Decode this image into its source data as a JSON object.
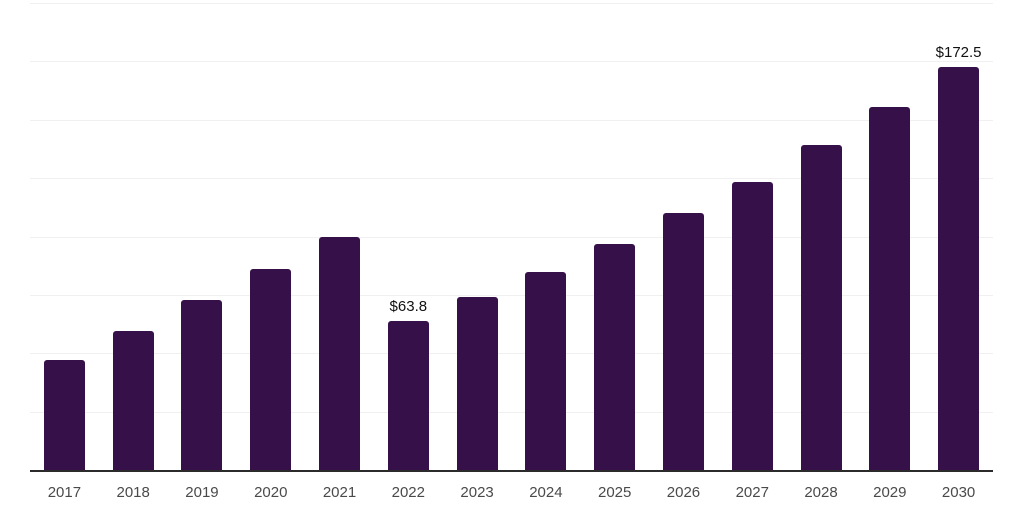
{
  "chart_data": {
    "type": "bar",
    "title": "",
    "xlabel": "",
    "ylabel": "",
    "categories": [
      "2017",
      "2018",
      "2019",
      "2020",
      "2021",
      "2022",
      "2023",
      "2024",
      "2025",
      "2026",
      "2027",
      "2028",
      "2029",
      "2030"
    ],
    "values": [
      47,
      59.5,
      73,
      86,
      100,
      63.8,
      74,
      85,
      97,
      110,
      123.5,
      139,
      155.5,
      172.5
    ],
    "data_labels": [
      "",
      "",
      "",
      "",
      "",
      "$63.8",
      "",
      "",
      "",
      "",
      "",
      "",
      "",
      "$172.5"
    ],
    "ylim": [
      0,
      200
    ],
    "gridline_step": 25,
    "grid": true,
    "legend_position": "none",
    "y_tick_labels_visible": false,
    "colors": {
      "bar": "#351049",
      "axis_line": "#2b2b2b",
      "gridline": "#f0f0f0",
      "data_label_text": "#111111",
      "tick_label_text": "#4a4a4a",
      "background": "#ffffff"
    }
  }
}
